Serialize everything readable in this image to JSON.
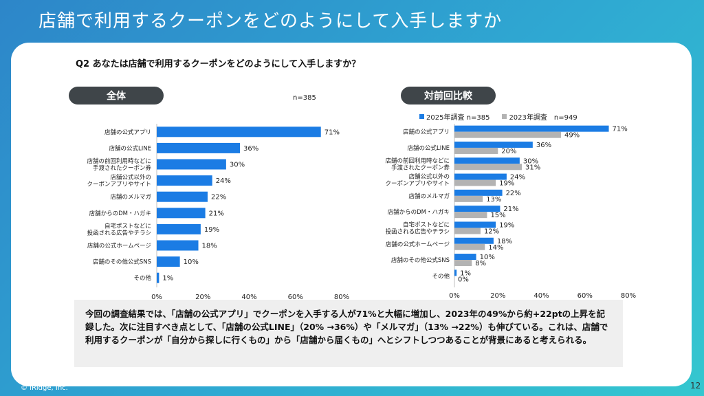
{
  "slide": {
    "title": "店舗で利用するクーポンをどのようにして入手しますか",
    "question": "Q2 あなたは店舗で利用するクーポンをどのようにして入手しますか？",
    "copyright": "© iRidge, Inc.",
    "page_number": "12",
    "summary": "今回の調査結果では、「店舗の公式アプリ」でクーポンを入手する人が71%と大幅に増加し、2023年の49%から約+22ptの上昇を記録した。次に注目すべき点として、「店舗の公式LINE」（20% →36%）や「メルマガ」（13% →22%）も伸びている。これは、店舗で利用するクーポンが「自分から探しに行くもの」から「店舗から届くもの」へとシフトしつつあることが背景にあると考えられる。"
  },
  "left_panel": {
    "pill": "全体",
    "n_label": "n=385"
  },
  "right_panel": {
    "pill": "対前回比較"
  },
  "colors": {
    "blue": "#1b7ce4",
    "gray": "#b3b3b3",
    "axis": "#bfbfbf"
  },
  "chart_data": [
    {
      "type": "bar",
      "orientation": "horizontal",
      "categories": [
        [
          "店舗の公式アプリ"
        ],
        [
          "店舗の公式LINE"
        ],
        [
          "店舗の前回利用時などに",
          "手渡されたクーポン券"
        ],
        [
          "店舗公式以外の",
          "クーポンアプリやサイト"
        ],
        [
          "店舗のメルマガ"
        ],
        [
          "店舗からのDM・ハガキ"
        ],
        [
          "自宅ポストなどに",
          "投函される広告やチラシ"
        ],
        [
          "店舗の公式ホームページ"
        ],
        [
          "店舗のその他公式SNS"
        ],
        [
          "その他"
        ]
      ],
      "series": [
        {
          "values": [
            71,
            36,
            30,
            24,
            22,
            21,
            19,
            18,
            10,
            1
          ]
        }
      ],
      "xlim": [
        0,
        80
      ],
      "xticks": [
        0,
        20,
        40,
        60,
        80
      ],
      "tick_labels": [
        "0%",
        "20%",
        "40%",
        "60%",
        "80%"
      ],
      "value_suffix": "%"
    },
    {
      "type": "bar",
      "orientation": "horizontal",
      "categories": [
        [
          "店舗の公式アプリ"
        ],
        [
          "店舗の公式LINE"
        ],
        [
          "店舗の前回利用時などに",
          "手渡されたクーポン券"
        ],
        [
          "店舗公式以外の",
          "クーポンアプリやサイト"
        ],
        [
          "店舗のメルマガ"
        ],
        [
          "店舗からのDM・ハガキ"
        ],
        [
          "自宅ポストなどに",
          "投函される広告やチラシ"
        ],
        [
          "店舗の公式ホームページ"
        ],
        [
          "店舗のその他公式SNS"
        ],
        [
          "その他"
        ]
      ],
      "series": [
        {
          "name": "2025年調査 n=385",
          "values": [
            71,
            36,
            30,
            24,
            22,
            21,
            19,
            18,
            10,
            1
          ]
        },
        {
          "name": "2023年調査　n=949",
          "values": [
            49,
            20,
            31,
            19,
            13,
            15,
            12,
            14,
            8,
            0
          ]
        }
      ],
      "legend": "top",
      "xlim": [
        0,
        80
      ],
      "xticks": [
        0,
        20,
        40,
        60,
        80
      ],
      "tick_labels": [
        "0%",
        "20%",
        "40%",
        "60%",
        "80%"
      ],
      "value_suffix": "%"
    }
  ]
}
